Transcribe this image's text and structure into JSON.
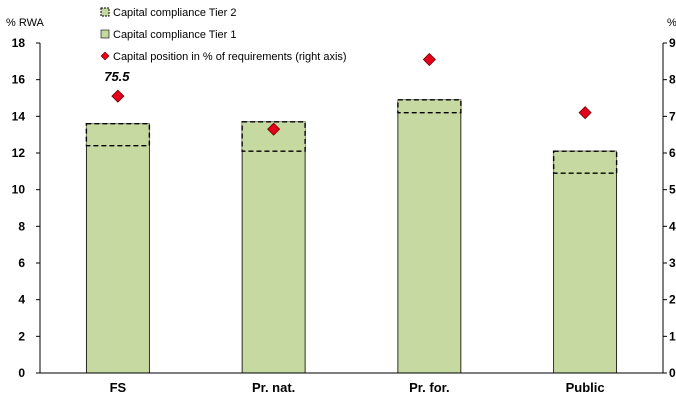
{
  "chart_data": {
    "type": "bar",
    "categories": [
      "FS",
      "Pr. nat.",
      "Pr. for.",
      "Public"
    ],
    "series": [
      {
        "name": "Capital compliance Tier 2",
        "kind": "bar-dashed-total",
        "axis": "left",
        "values": [
          13.6,
          13.7,
          14.9,
          12.1
        ],
        "color": "#c5d9a0"
      },
      {
        "name": "Capital compliance Tier 1",
        "kind": "bar",
        "axis": "left",
        "values": [
          12.4,
          12.1,
          14.2,
          10.9
        ],
        "color": "#c5d9a0"
      },
      {
        "name": "Capital position in % of requirements (right axis)",
        "kind": "marker",
        "axis": "right",
        "values": [
          75.5,
          66.5,
          85.5,
          71.0
        ],
        "color": "#e3001b"
      }
    ],
    "y_left": {
      "label": "% RWA",
      "min": 0,
      "max": 18,
      "ticks": [
        0,
        2,
        4,
        6,
        8,
        10,
        12,
        14,
        16,
        18
      ]
    },
    "y_right": {
      "label": "%",
      "min": 0,
      "max": 90,
      "ticks": [
        "0",
        "1",
        "2",
        "3",
        "4",
        "5",
        "6",
        "7",
        "8",
        "9"
      ]
    },
    "annotations": [
      {
        "category": "FS",
        "text": "75.5"
      }
    ],
    "grid": false,
    "legend_position": "top-left"
  }
}
